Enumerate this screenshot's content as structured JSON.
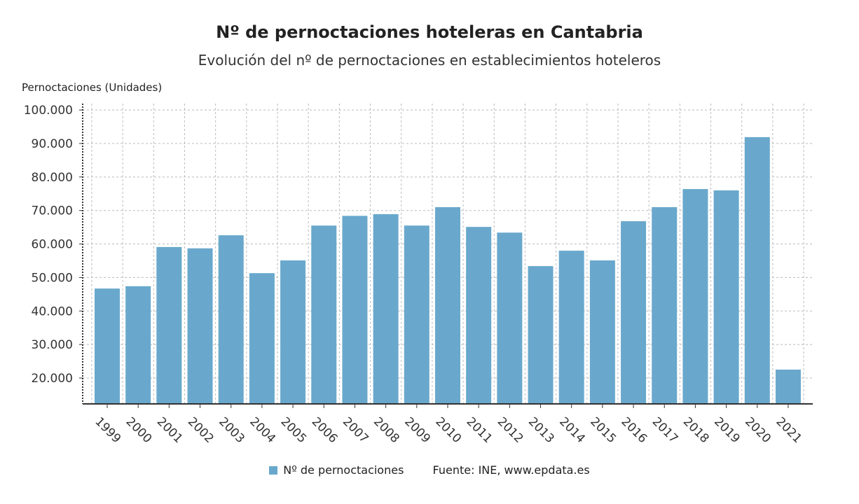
{
  "chart_data": {
    "type": "bar",
    "title": "Nº de pernoctaciones hoteleras en Cantabria",
    "subtitle": "Evolución del nº de pernoctaciones en establecimientos hoteleros",
    "ylabel": "Pernoctaciones (Unidades)",
    "xlabel": "",
    "categories": [
      "1999",
      "2000",
      "2001",
      "2002",
      "2003",
      "2004",
      "2005",
      "2006",
      "2007",
      "2008",
      "2009",
      "2010",
      "2011",
      "2012",
      "2013",
      "2014",
      "2015",
      "2016",
      "2017",
      "2018",
      "2019",
      "2020",
      "2021"
    ],
    "series": [
      {
        "name": "Nº de pernoctaciones",
        "color": "#69a8cc",
        "values": [
          46700,
          47400,
          59100,
          58700,
          62600,
          51300,
          55100,
          65500,
          68400,
          68900,
          65500,
          71000,
          65100,
          63400,
          53400,
          58000,
          55100,
          66800,
          71000,
          76400,
          76000,
          91900,
          22500
        ]
      }
    ],
    "yticks": [
      "20.000",
      "30.000",
      "40.000",
      "50.000",
      "60.000",
      "70.000",
      "80.000",
      "90.000",
      "100.000"
    ],
    "ytick_values": [
      20000,
      30000,
      40000,
      50000,
      60000,
      70000,
      80000,
      90000,
      100000
    ],
    "ylim": [
      12300,
      100000
    ],
    "grid": true,
    "legend": "bottom",
    "source": "Fuente: INE, www.epdata.es"
  }
}
